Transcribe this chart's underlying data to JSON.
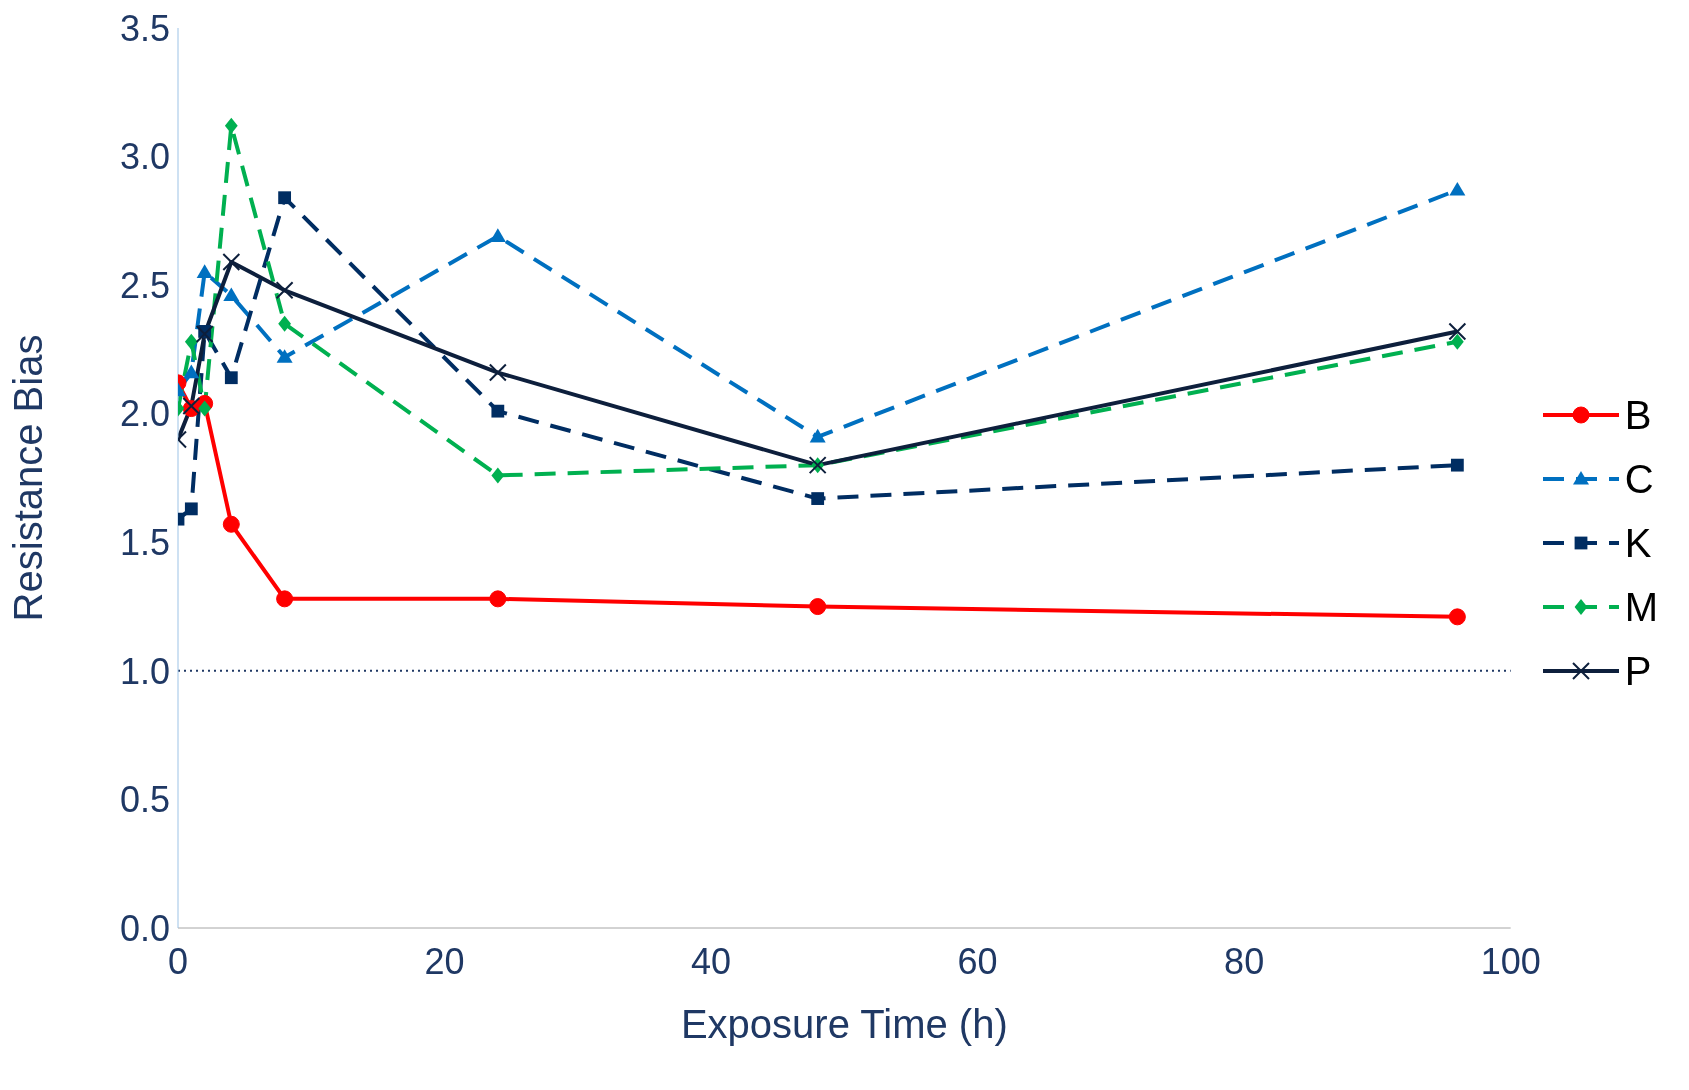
{
  "chart_data": {
    "type": "line",
    "xlabel": "Exposure Time (h)",
    "ylabel": "Resistance Bias",
    "x": [
      0,
      1,
      2,
      4,
      8,
      24,
      48,
      96
    ],
    "xlim": [
      0,
      100
    ],
    "xticks": [
      0,
      20,
      40,
      60,
      80,
      100
    ],
    "ylim": [
      0,
      3.5
    ],
    "yticks": [
      {
        "value": 0,
        "label": "0.0"
      },
      0.5,
      {
        "value": 1,
        "label": "1.0"
      },
      1.5,
      {
        "value": 2,
        "label": "2.0"
      },
      2.5,
      {
        "value": 3,
        "label": "3.0"
      },
      3.5
    ],
    "grid": false,
    "legend": "right",
    "ref_lines": [
      {
        "axis": "y",
        "value": 1,
        "color": "#1f3864",
        "line_style": "dotted"
      }
    ],
    "series": [
      {
        "name": "B",
        "color": "#ff0000",
        "marker": "circle",
        "line_style": "solid",
        "values": [
          2.12,
          2.02,
          2.04,
          1.57,
          1.28,
          1.28,
          1.25,
          1.21
        ]
      },
      {
        "name": "C",
        "color": "#0070c0",
        "marker": "triangle",
        "line_style": "dashed",
        "values": [
          2.09,
          2.16,
          2.55,
          2.46,
          2.22,
          2.69,
          1.91,
          2.87
        ]
      },
      {
        "name": "K",
        "color": "#002d62",
        "marker": "square",
        "line_style": "dashed",
        "values": [
          1.59,
          1.63,
          2.32,
          2.14,
          2.84,
          2.01,
          1.67,
          1.8
        ]
      },
      {
        "name": "M",
        "color": "#00b050",
        "marker": "diamond",
        "line_style": "dashed",
        "values": [
          2.02,
          2.28,
          2.02,
          3.12,
          2.35,
          1.76,
          1.8,
          2.28
        ]
      },
      {
        "name": "P",
        "color": "#0d1f3c",
        "marker": "cross",
        "line_style": "solid",
        "values": [
          1.9,
          2.03,
          2.31,
          2.59,
          2.48,
          2.16,
          1.8,
          2.32
        ]
      }
    ]
  }
}
